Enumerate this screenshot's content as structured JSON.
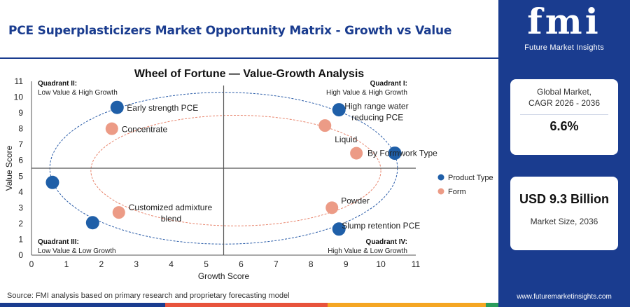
{
  "page": {
    "title": "PCE Superplasticizers Market Opportunity Matrix - Growth vs Value",
    "source": "Source: FMI analysis based on primary research and proprietary forecasting model"
  },
  "brand": {
    "logo_text": "fmi",
    "logo_subtitle": "Future Market Insights",
    "website": "www.futuremarketinsights.com",
    "colors": {
      "primary": "#1a3c8f",
      "bar": [
        "#1a3c8f",
        "#e8533c",
        "#f5a623",
        "#2a9d5c",
        "#1a3c8f"
      ]
    }
  },
  "cards": {
    "cagr_label_line1": "Global Market,",
    "cagr_label_line2": "CAGR 2026 - 2036",
    "cagr_value": "6.6%",
    "size_value": "USD 9.3 Billion",
    "size_label": "Market Size, 2036"
  },
  "chart_data": {
    "type": "scatter",
    "title": "Wheel of Fortune — Value-Growth Analysis",
    "xlabel": "Growth Score",
    "ylabel": "Value Score",
    "xlim": [
      0,
      11
    ],
    "ylim": [
      0,
      11
    ],
    "xticks": [
      "0",
      "1",
      "2",
      "3",
      "4",
      "5",
      "6",
      "7",
      "8",
      "9",
      "10",
      "11"
    ],
    "yticks": [
      "0",
      "1",
      "2",
      "3",
      "4",
      "5",
      "6",
      "7",
      "8",
      "9",
      "10",
      "11"
    ],
    "divider": {
      "x": 5.5,
      "y": 5.5
    },
    "grid": false,
    "legend_position": "right",
    "quadrants": [
      {
        "title": "Quadrant II:",
        "desc": "Low Value & High Growth",
        "pos": "top-left"
      },
      {
        "title": "Quadrant I:",
        "desc": "High Value & High Growth",
        "pos": "top-right"
      },
      {
        "title": "Quadrant III:",
        "desc": "Low Value & Low Growth",
        "pos": "bottom-left"
      },
      {
        "title": "Quadrant IV:",
        "desc": "High Value & Low Growth",
        "pos": "bottom-right"
      }
    ],
    "series": [
      {
        "name": "Product Type",
        "color": "#1f5fa8",
        "points": [
          {
            "x": 2.45,
            "y": 9.35,
            "label": [
              "Early strength PCE"
            ]
          },
          {
            "x": 8.8,
            "y": 9.2,
            "label": [
              "High range water",
              "reducing PCE"
            ]
          },
          {
            "x": 10.4,
            "y": 6.45,
            "label": [
              "By Formwork Type"
            ]
          },
          {
            "x": 0.6,
            "y": 4.6,
            "label": []
          },
          {
            "x": 1.75,
            "y": 2.05,
            "label": []
          },
          {
            "x": 8.8,
            "y": 1.65,
            "label": [
              "Slump retention PCE"
            ]
          }
        ]
      },
      {
        "name": "Form",
        "color": "#ec9b86",
        "points": [
          {
            "x": 2.3,
            "y": 8.0,
            "label": [
              "Concentrate"
            ]
          },
          {
            "x": 8.4,
            "y": 8.2,
            "label": [
              "Liquid"
            ]
          },
          {
            "x": 9.3,
            "y": 6.45,
            "label": []
          },
          {
            "x": 2.5,
            "y": 2.7,
            "label": [
              "Customized admixture",
              "blend"
            ]
          },
          {
            "x": 8.6,
            "y": 3.0,
            "label": [
              "Powder"
            ]
          }
        ]
      }
    ]
  }
}
